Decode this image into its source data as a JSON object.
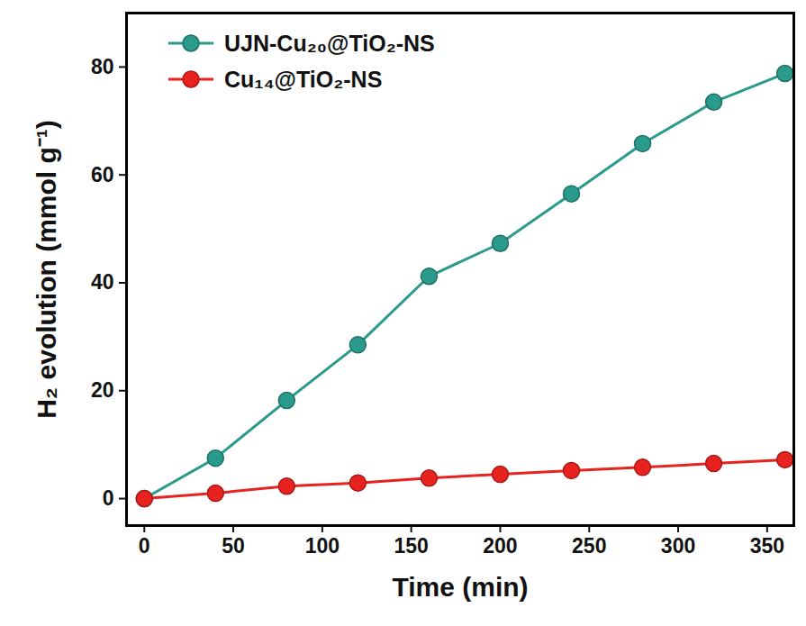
{
  "chart_data": {
    "type": "line",
    "x_label": "Time (min)",
    "y_label": "H₂ evolution (mmol g⁻¹)",
    "x": [
      0,
      40,
      80,
      120,
      160,
      200,
      240,
      280,
      320,
      360
    ],
    "series": [
      {
        "name": "UJN-Cu₂₀@TiO₂-NS",
        "color": "#2a9a8c",
        "marker": "circle",
        "values": [
          0,
          7.5,
          18.2,
          28.5,
          41.2,
          47.3,
          56.5,
          65.8,
          73.5,
          78.8
        ]
      },
      {
        "name": "Cu₁₄@TiO₂-NS",
        "color": "#e8231f",
        "marker": "circle",
        "values": [
          0,
          1.0,
          2.3,
          2.9,
          3.8,
          4.5,
          5.2,
          5.8,
          6.5,
          7.2
        ]
      }
    ],
    "xlim": [
      -10,
      365
    ],
    "xticks": [
      0,
      50,
      100,
      150,
      200,
      250,
      300,
      350
    ],
    "ylim": [
      -5,
      90
    ],
    "yticks": [
      0,
      20,
      40,
      60,
      80
    ],
    "legend": "top-left"
  }
}
